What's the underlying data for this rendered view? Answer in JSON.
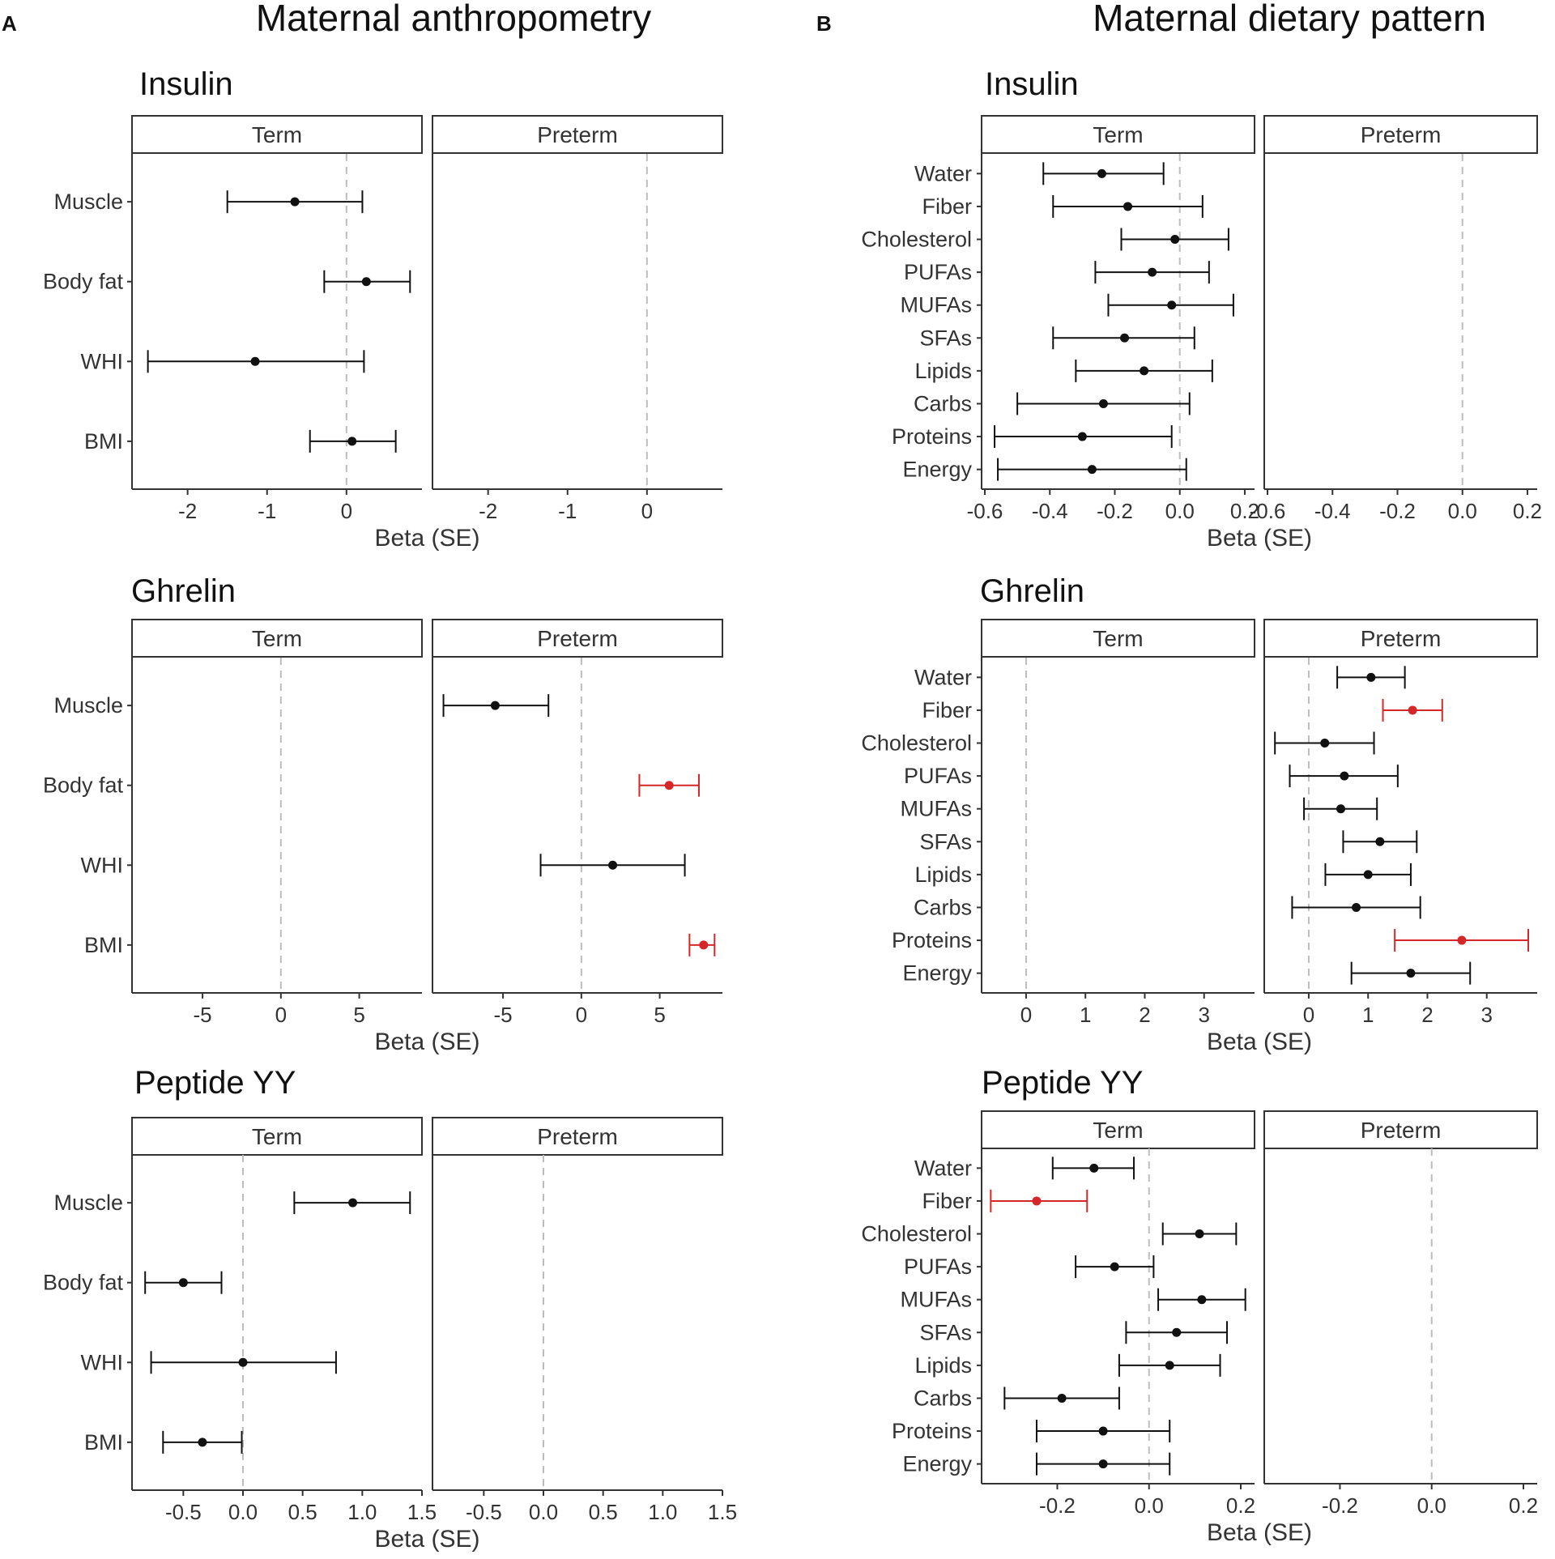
{
  "figure": {
    "panel_a_label": "A",
    "panel_b_label": "B",
    "panel_a_title": "Maternal anthropometry",
    "panel_b_title": "Maternal dietary pattern"
  },
  "colors": {
    "significant": "#d62728",
    "normal": "#111111"
  },
  "chart_data": [
    {
      "id": "a-insulin",
      "type": "forest",
      "panel": "A",
      "title": "Insulin",
      "facets": [
        "Term",
        "Preterm"
      ],
      "categories": [
        "Muscle",
        "Body fat",
        "WHI",
        "BMI"
      ],
      "xlabel": "Beta (SE)",
      "xlim": [
        -2.7,
        0.95
      ],
      "ticks": [
        -2,
        -1,
        0
      ],
      "tick_labels": [
        "-2",
        "-1",
        "0"
      ],
      "series": [
        {
          "name": "Term",
          "points": [
            {
              "label": "Muscle",
              "est": -0.65,
              "lo": -1.5,
              "hi": 0.2,
              "sig": false
            },
            {
              "label": "Body fat",
              "est": 0.25,
              "lo": -0.28,
              "hi": 0.8,
              "sig": false
            },
            {
              "label": "WHI",
              "est": -1.15,
              "lo": -2.5,
              "hi": 0.22,
              "sig": false
            },
            {
              "label": "BMI",
              "est": 0.07,
              "lo": -0.46,
              "hi": 0.62,
              "sig": false
            }
          ]
        },
        {
          "name": "Preterm",
          "points": []
        }
      ]
    },
    {
      "id": "a-ghrelin",
      "type": "forest",
      "panel": "A",
      "title": "Ghrelin",
      "facets": [
        "Term",
        "Preterm"
      ],
      "categories": [
        "Muscle",
        "Body fat",
        "WHI",
        "BMI"
      ],
      "xlabel": "Beta (SE)",
      "xlim": [
        -9.5,
        9.0
      ],
      "ticks": [
        -5,
        0,
        5
      ],
      "tick_labels": [
        "-5",
        "0",
        "5"
      ],
      "series": [
        {
          "name": "Term",
          "points": []
        },
        {
          "name": "Preterm",
          "points": [
            {
              "label": "Muscle",
              "est": -5.5,
              "lo": -8.8,
              "hi": -2.1,
              "sig": false
            },
            {
              "label": "Body fat",
              "est": 5.6,
              "lo": 3.7,
              "hi": 7.5,
              "sig": true
            },
            {
              "label": "WHI",
              "est": 2.0,
              "lo": -2.6,
              "hi": 6.6,
              "sig": false
            },
            {
              "label": "BMI",
              "est": 7.8,
              "lo": 6.9,
              "hi": 8.5,
              "sig": true
            }
          ]
        }
      ]
    },
    {
      "id": "a-pyy",
      "type": "forest",
      "panel": "A",
      "title": "Peptide YY",
      "facets": [
        "Term",
        "Preterm"
      ],
      "categories": [
        "Muscle",
        "Body fat",
        "WHI",
        "BMI"
      ],
      "xlabel": "Beta (SE)",
      "xlim": [
        -0.93,
        1.5
      ],
      "ticks": [
        -0.5,
        0.0,
        0.5,
        1.0,
        1.5
      ],
      "tick_labels": [
        "-0.5",
        "0.0",
        "0.5",
        "1.0",
        "1.5"
      ],
      "series": [
        {
          "name": "Term",
          "points": [
            {
              "label": "Muscle",
              "est": 0.92,
              "lo": 0.43,
              "hi": 1.4,
              "sig": false
            },
            {
              "label": "Body fat",
              "est": -0.5,
              "lo": -0.82,
              "hi": -0.18,
              "sig": false
            },
            {
              "label": "WHI",
              "est": 0.0,
              "lo": -0.77,
              "hi": 0.78,
              "sig": false
            },
            {
              "label": "BMI",
              "est": -0.34,
              "lo": -0.67,
              "hi": -0.01,
              "sig": false
            }
          ]
        },
        {
          "name": "Preterm",
          "points": []
        }
      ]
    },
    {
      "id": "b-insulin",
      "type": "forest",
      "panel": "B",
      "title": "Insulin",
      "facets": [
        "Term",
        "Preterm"
      ],
      "categories": [
        "Water",
        "Fiber",
        "Cholesterol",
        "PUFAs",
        "MUFAs",
        "SFAs",
        "Lipids",
        "Carbs",
        "Proteins",
        "Energy"
      ],
      "xlabel": "Beta (SE)",
      "xlim": [
        -0.61,
        0.23
      ],
      "ticks": [
        -0.6,
        -0.4,
        -0.2,
        0.0,
        0.2
      ],
      "tick_labels": [
        "-0.6",
        "-0.4",
        "-0.2",
        "0.0",
        "0.2"
      ],
      "series": [
        {
          "name": "Term",
          "points": [
            {
              "label": "Water",
              "est": -0.24,
              "lo": -0.42,
              "hi": -0.05,
              "sig": false
            },
            {
              "label": "Fiber",
              "est": -0.16,
              "lo": -0.39,
              "hi": 0.07,
              "sig": false
            },
            {
              "label": "Cholesterol",
              "est": -0.015,
              "lo": -0.18,
              "hi": 0.15,
              "sig": false
            },
            {
              "label": "PUFAs",
              "est": -0.085,
              "lo": -0.26,
              "hi": 0.09,
              "sig": false
            },
            {
              "label": "MUFAs",
              "est": -0.025,
              "lo": -0.22,
              "hi": 0.165,
              "sig": false
            },
            {
              "label": "SFAs",
              "est": -0.17,
              "lo": -0.39,
              "hi": 0.045,
              "sig": false
            },
            {
              "label": "Lipids",
              "est": -0.11,
              "lo": -0.32,
              "hi": 0.1,
              "sig": false
            },
            {
              "label": "Carbs",
              "est": -0.235,
              "lo": -0.5,
              "hi": 0.03,
              "sig": false
            },
            {
              "label": "Proteins",
              "est": -0.3,
              "lo": -0.57,
              "hi": -0.025,
              "sig": false
            },
            {
              "label": "Energy",
              "est": -0.27,
              "lo": -0.56,
              "hi": 0.02,
              "sig": false
            }
          ]
        },
        {
          "name": "Preterm",
          "points": []
        }
      ]
    },
    {
      "id": "b-ghrelin",
      "type": "forest",
      "panel": "B",
      "title": "Ghrelin",
      "facets": [
        "Term",
        "Preterm"
      ],
      "categories": [
        "Water",
        "Fiber",
        "Cholesterol",
        "PUFAs",
        "MUFAs",
        "SFAs",
        "Lipids",
        "Carbs",
        "Proteins",
        "Energy"
      ],
      "xlabel": "Beta (SE)",
      "xlim": [
        -0.75,
        3.85
      ],
      "ticks": [
        0,
        1,
        2,
        3
      ],
      "tick_labels": [
        "0",
        "1",
        "2",
        "3"
      ],
      "series": [
        {
          "name": "Term",
          "points": []
        },
        {
          "name": "Preterm",
          "points": [
            {
              "label": "Water",
              "est": 1.05,
              "lo": 0.48,
              "hi": 1.62,
              "sig": false
            },
            {
              "label": "Fiber",
              "est": 1.75,
              "lo": 1.25,
              "hi": 2.25,
              "sig": true
            },
            {
              "label": "Cholesterol",
              "est": 0.27,
              "lo": -0.57,
              "hi": 1.1,
              "sig": false
            },
            {
              "label": "PUFAs",
              "est": 0.6,
              "lo": -0.32,
              "hi": 1.5,
              "sig": false
            },
            {
              "label": "MUFAs",
              "est": 0.54,
              "lo": -0.08,
              "hi": 1.15,
              "sig": false
            },
            {
              "label": "SFAs",
              "est": 1.2,
              "lo": 0.58,
              "hi": 1.82,
              "sig": false
            },
            {
              "label": "Lipids",
              "est": 1.0,
              "lo": 0.28,
              "hi": 1.72,
              "sig": false
            },
            {
              "label": "Carbs",
              "est": 0.8,
              "lo": -0.28,
              "hi": 1.88,
              "sig": false
            },
            {
              "label": "Proteins",
              "est": 2.58,
              "lo": 1.45,
              "hi": 3.7,
              "sig": true
            },
            {
              "label": "Energy",
              "est": 1.72,
              "lo": 0.72,
              "hi": 2.72,
              "sig": false
            }
          ]
        }
      ]
    },
    {
      "id": "b-pyy",
      "type": "forest",
      "panel": "B",
      "title": "Peptide YY",
      "facets": [
        "Term",
        "Preterm"
      ],
      "categories": [
        "Water",
        "Fiber",
        "Cholesterol",
        "PUFAs",
        "MUFAs",
        "SFAs",
        "Lipids",
        "Carbs",
        "Proteins",
        "Energy"
      ],
      "xlabel": "Beta (SE)",
      "xlim": [
        -0.365,
        0.23
      ],
      "ticks": [
        -0.2,
        0.0,
        0.2
      ],
      "tick_labels": [
        "-0.2",
        "0.0",
        "0.2"
      ],
      "series": [
        {
          "name": "Term",
          "points": [
            {
              "label": "Water",
              "est": -0.12,
              "lo": -0.21,
              "hi": -0.033,
              "sig": false
            },
            {
              "label": "Fiber",
              "est": -0.245,
              "lo": -0.345,
              "hi": -0.135,
              "sig": true
            },
            {
              "label": "Cholesterol",
              "est": 0.11,
              "lo": 0.03,
              "hi": 0.19,
              "sig": false
            },
            {
              "label": "PUFAs",
              "est": -0.075,
              "lo": -0.16,
              "hi": 0.01,
              "sig": false
            },
            {
              "label": "MUFAs",
              "est": 0.115,
              "lo": 0.02,
              "hi": 0.21,
              "sig": false
            },
            {
              "label": "SFAs",
              "est": 0.06,
              "lo": -0.05,
              "hi": 0.17,
              "sig": false
            },
            {
              "label": "Lipids",
              "est": 0.045,
              "lo": -0.065,
              "hi": 0.155,
              "sig": false
            },
            {
              "label": "Carbs",
              "est": -0.19,
              "lo": -0.315,
              "hi": -0.065,
              "sig": false
            },
            {
              "label": "Proteins",
              "est": -0.1,
              "lo": -0.245,
              "hi": 0.045,
              "sig": false
            },
            {
              "label": "Energy",
              "est": -0.1,
              "lo": -0.245,
              "hi": 0.045,
              "sig": false
            }
          ]
        },
        {
          "name": "Preterm",
          "points": []
        }
      ]
    }
  ]
}
